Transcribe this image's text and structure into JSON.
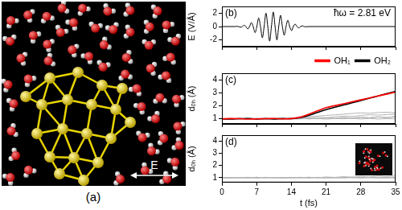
{
  "panel_a": {
    "label": "(a)",
    "field_label": "E"
  },
  "chart_data": [
    {
      "type": "line",
      "title": "(b)",
      "annotation": "ħω = 2.81 eV",
      "y_label": "E (V/Å)",
      "xlim": [
        0,
        35
      ],
      "xticks": [
        0,
        7,
        14,
        21,
        28,
        35
      ],
      "ylim": [
        -3,
        3
      ],
      "yticks": [
        -2,
        0,
        2
      ],
      "grid": false,
      "tick_labels": "y",
      "series": [
        {
          "color": "#000000",
          "x": [
            0,
            2.63,
            3.0,
            3.37,
            3.74,
            4.1,
            4.47,
            4.84,
            5.21,
            5.57,
            5.94,
            6.31,
            6.68,
            7.04,
            7.41,
            7.78,
            8.15,
            8.51,
            8.88,
            9.25,
            9.62,
            9.98,
            10.35,
            10.72,
            11.09,
            11.45,
            11.82,
            12.19,
            12.56,
            12.92,
            13.29,
            13.66,
            14.03,
            14.39,
            14.76,
            15.13,
            15.5,
            15.86,
            16.23,
            16.6,
            16.97,
            17.34,
            35
          ],
          "values": [
            0,
            0,
            0.04,
            0,
            -0.1,
            0,
            0.19,
            0,
            -0.35,
            0,
            0.59,
            0,
            -0.91,
            0,
            1.29,
            0,
            -1.67,
            0,
            1.99,
            0,
            -2.18,
            0,
            2.18,
            0,
            -2.0,
            0,
            1.69,
            0,
            -1.3,
            0,
            0.93,
            0,
            -0.6,
            0,
            0.36,
            0,
            -0.2,
            0,
            0.1,
            0,
            -0.04,
            0,
            0
          ]
        }
      ]
    },
    {
      "type": "line",
      "title": "(c)",
      "y_label": "dₒₕ (Å)",
      "x": [
        0,
        1.75,
        3.5,
        5.25,
        7,
        8.75,
        10.5,
        12.25,
        14,
        15.75,
        17.5,
        19.25,
        21,
        22.75,
        24.5,
        26.25,
        28,
        29.75,
        31.5,
        33.25,
        35
      ],
      "xlim": [
        0,
        35
      ],
      "xticks": [
        0,
        7,
        14,
        21,
        28,
        35
      ],
      "ylim": [
        0.6,
        4.5
      ],
      "yticks": [
        1,
        2,
        3,
        4
      ],
      "grid": false,
      "tick_labels": "y",
      "legend": "upper right",
      "series": [
        {
          "name": "OH₁",
          "color": "#ff0000",
          "values": [
            0.98,
            1.01,
            1.0,
            0.97,
            0.99,
            1.0,
            1.02,
            0.99,
            1.01,
            1.12,
            1.35,
            1.6,
            1.85,
            2.0,
            2.15,
            2.3,
            2.45,
            2.6,
            2.75,
            2.9,
            3.05
          ]
        },
        {
          "name": "OH₂",
          "color": "#000000",
          "values": [
            0.99,
            0.97,
            1.0,
            1.02,
            0.98,
            1.0,
            0.98,
            1.01,
            1.0,
            1.08,
            1.25,
            1.48,
            1.7,
            1.88,
            2.05,
            2.22,
            2.4,
            2.58,
            2.75,
            2.93,
            3.1
          ]
        },
        {
          "color": "#b4b4b4",
          "values": [
            1.0,
            0.96,
            1.03,
            0.98,
            1.02,
            0.97,
            1.04,
            0.99,
            1.05,
            1.1,
            1.15,
            1.2,
            1.25,
            1.3,
            1.35,
            1.4,
            1.45,
            1.42,
            1.48,
            1.5,
            1.45
          ]
        },
        {
          "color": "#b4b4b4",
          "values": [
            0.98,
            1.03,
            0.97,
            1.02,
            0.99,
            1.04,
            0.98,
            1.03,
            0.97,
            1.02,
            1.06,
            1.1,
            1.08,
            1.15,
            1.2,
            1.18,
            1.25,
            1.3,
            1.28,
            1.32,
            1.35
          ]
        },
        {
          "color": "#b4b4b4",
          "values": [
            1.02,
            0.98,
            1.01,
            0.96,
            1.03,
            0.99,
            1.02,
            0.97,
            1.01,
            0.98,
            1.03,
            0.99,
            1.05,
            1.02,
            1.08,
            1.04,
            1.1,
            1.06,
            1.12,
            1.08,
            1.15
          ]
        },
        {
          "color": "#b4b4b4",
          "values": [
            0.97,
            1.01,
            0.99,
            1.03,
            0.97,
            1.02,
            0.98,
            1.01,
            0.99,
            1.03,
            0.98,
            1.02,
            0.97,
            1.01,
            0.99,
            1.03,
            0.98,
            1.02,
            0.97,
            1.01,
            0.99
          ]
        },
        {
          "color": "#b4b4b4",
          "values": [
            1.01,
            0.99,
            1.02,
            0.98,
            1.01,
            0.97,
            1.03,
            0.99,
            1.02,
            1.0,
            1.04,
            1.0,
            1.06,
            1.02,
            1.1,
            1.05,
            1.12,
            1.08,
            1.15,
            1.1,
            1.2
          ]
        }
      ]
    },
    {
      "type": "line",
      "title": "(d)",
      "y_label": "dₒₕ (Å)",
      "x_label": "t (fs)",
      "x": [
        0,
        1.75,
        3.5,
        5.25,
        7,
        8.75,
        10.5,
        12.25,
        14,
        15.75,
        17.5,
        19.25,
        21,
        22.75,
        24.5,
        26.25,
        28,
        29.75,
        31.5,
        33.25,
        35
      ],
      "xlim": [
        0,
        35
      ],
      "xticks": [
        0,
        7,
        14,
        21,
        28,
        35
      ],
      "ylim": [
        0.6,
        4.5
      ],
      "yticks": [
        1,
        2,
        3,
        4
      ],
      "grid": false,
      "series": [
        {
          "color": "#b4b4b4",
          "values": [
            0.97,
            1.01,
            0.99,
            1.03,
            0.97,
            1.02,
            0.98,
            1.01,
            0.99,
            1.03,
            0.98,
            1.02,
            0.97,
            1.01,
            0.99,
            1.03,
            0.98,
            1.02,
            0.97,
            1.01,
            0.99
          ]
        },
        {
          "color": "#b4b4b4",
          "values": [
            1.02,
            0.98,
            1.01,
            0.96,
            1.03,
            0.99,
            1.02,
            0.97,
            1.01,
            0.98,
            1.03,
            0.99,
            1.05,
            1.02,
            1.08,
            1.04,
            1.1,
            1.06,
            1.12,
            1.08,
            1.15
          ]
        },
        {
          "color": "#b4b4b4",
          "values": [
            1.0,
            1.02,
            0.98,
            1.01,
            0.97,
            1.03,
            0.99,
            1.02,
            0.98,
            1.01,
            0.97,
            1.03,
            0.99,
            1.02,
            0.98,
            1.01,
            0.97,
            1.03,
            0.99,
            1.02,
            0.98
          ]
        },
        {
          "color": "#b4b4b4",
          "values": [
            0.99,
            0.97,
            1.02,
            0.99,
            1.03,
            0.98,
            1.01,
            0.97,
            1.02,
            0.99,
            1.03,
            0.98,
            1.01,
            0.97,
            1.02,
            0.99,
            1.03,
            0.98,
            1.01,
            0.97,
            1.02
          ]
        }
      ]
    }
  ]
}
